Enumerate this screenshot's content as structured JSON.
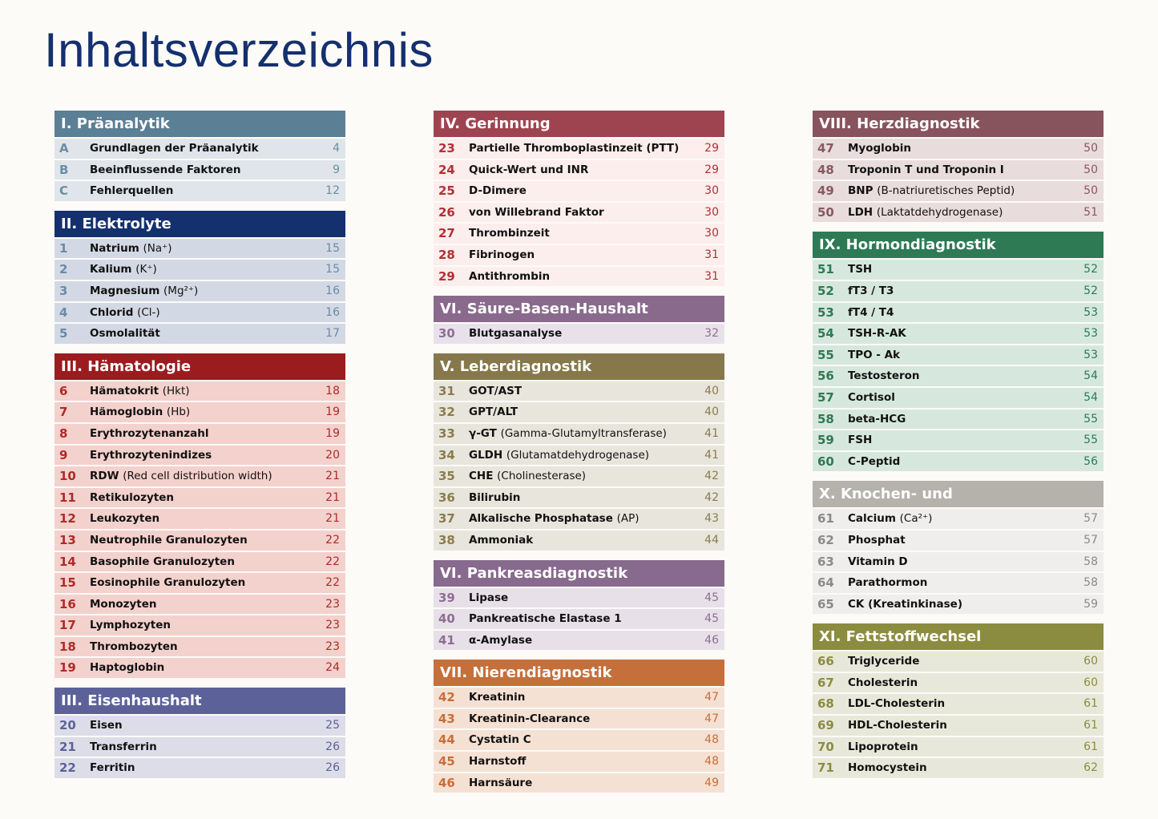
{
  "title": "Inhaltsverzeichnis",
  "columns": [
    {
      "sections": [
        {
          "title": "I. Präanalytik",
          "color": "#5b7f95",
          "row_color": "#dfe5ea",
          "accent": "#6b8fa5",
          "entries": [
            {
              "number": "A",
              "name": "Grundlagen der Präanalytik",
              "page": 4
            },
            {
              "number": "B",
              "name": "Beeinflussende Faktoren",
              "page": 9
            },
            {
              "number": "C",
              "name": "Fehlerquellen",
              "page": 12
            }
          ]
        },
        {
          "title": "II. Elektrolyte",
          "color": "#14306e",
          "row_color": "#d3d9e4",
          "accent": "#6a8aa8",
          "entries": [
            {
              "number": 1,
              "name": "Natrium",
              "detail": "(Na⁺)",
              "page": 15
            },
            {
              "number": 2,
              "name": "Kalium",
              "detail": "(K⁺)",
              "page": 15
            },
            {
              "number": 3,
              "name": "Magnesium",
              "detail": "(Mg²⁺)",
              "page": 16
            },
            {
              "number": 4,
              "name": "Chlorid",
              "detail": "(Cl-)",
              "page": 16
            },
            {
              "number": 5,
              "name": "Osmolalität",
              "page": 17
            }
          ]
        },
        {
          "title": "III. Hämatologie",
          "color": "#9b1c1f",
          "row_color": "#f3d1cc",
          "accent": "#b02a2a",
          "entries": [
            {
              "number": 6,
              "name": "Hämatokrit",
              "detail": "(Hkt)",
              "page": 18
            },
            {
              "number": 7,
              "name": "Hämoglobin",
              "detail": "(Hb)",
              "page": 19
            },
            {
              "number": 8,
              "name": "Erythrozytenanzahl",
              "page": 19
            },
            {
              "number": 9,
              "name": "Erythrozytenindizes",
              "page": 20
            },
            {
              "number": 10,
              "name": "RDW",
              "detail": "(Red cell distribution width)",
              "page": 21
            },
            {
              "number": 11,
              "name": "Retikulozyten",
              "page": 21
            },
            {
              "number": 12,
              "name": "Leukozyten",
              "page": 21
            },
            {
              "number": 13,
              "name": "Neutrophile Granulozyten",
              "page": 22
            },
            {
              "number": 14,
              "name": "Basophile Granulozyten",
              "page": 22
            },
            {
              "number": 15,
              "name": "Eosinophile Granulozyten",
              "page": 22
            },
            {
              "number": 16,
              "name": "Monozyten",
              "page": 23
            },
            {
              "number": 17,
              "name": "Lymphozyten",
              "page": 23
            },
            {
              "number": 18,
              "name": "Thrombozyten",
              "page": 23
            },
            {
              "number": 19,
              "name": "Haptoglobin",
              "page": 24
            }
          ]
        },
        {
          "title": "III. Eisenhaushalt",
          "color": "#5c6299",
          "row_color": "#dcdde8",
          "accent": "#5c6299",
          "entries": [
            {
              "number": 20,
              "name": "Eisen",
              "page": 25
            },
            {
              "number": 21,
              "name": "Transferrin",
              "page": 26
            },
            {
              "number": 22,
              "name": "Ferritin",
              "page": 26
            }
          ]
        }
      ]
    },
    {
      "sections": [
        {
          "title": "IV. Gerinnung",
          "color": "#9e4450",
          "row_color": "#fbeeec",
          "accent": "#b0303a",
          "entries": [
            {
              "number": 23,
              "name": "Partielle Thromboplastinzeit (PTT)",
              "page": 29
            },
            {
              "number": 24,
              "name": "Quick-Wert und INR",
              "page": 29
            },
            {
              "number": 25,
              "name": "D-Dimere",
              "page": 30
            },
            {
              "number": 26,
              "name": "von Willebrand Faktor",
              "page": 30
            },
            {
              "number": 27,
              "name": "Thrombinzeit",
              "page": 30
            },
            {
              "number": 28,
              "name": "Fibrinogen",
              "page": 31
            },
            {
              "number": 29,
              "name": "Antithrombin",
              "page": 31
            }
          ]
        },
        {
          "title": "VI. Säure-Basen-Haushalt",
          "color": "#896a8d",
          "row_color": "#e9e1ea",
          "accent": "#8d6f92",
          "entries": [
            {
              "number": 30,
              "name": "Blutgasanalyse",
              "page": 32
            }
          ]
        },
        {
          "title": "V. Leberdiagnostik",
          "color": "#86784a",
          "row_color": "#e8e5dc",
          "accent": "#8a7c4f",
          "entries": [
            {
              "number": 31,
              "name": "GOT/AST",
              "page": 40
            },
            {
              "number": 32,
              "name": "GPT/ALT",
              "page": 40
            },
            {
              "number": 33,
              "name": "γ-GT",
              "detail": "(Gamma-Glutamyltransferase)",
              "page": 41
            },
            {
              "number": 34,
              "name": "GLDH",
              "detail": "(Glutamatdehydrogenase)",
              "page": 41
            },
            {
              "number": 35,
              "name": "CHE",
              "detail": "(Cholinesterase)",
              "page": 42
            },
            {
              "number": 36,
              "name": "Bilirubin",
              "page": 42
            },
            {
              "number": 37,
              "name": "Alkalische Phosphatase",
              "detail": "(AP)",
              "page": 43
            },
            {
              "number": 38,
              "name": "Ammoniak",
              "page": 44
            }
          ]
        },
        {
          "title": "VI. Pankreasdiagnostik",
          "color": "#876a8d",
          "row_color": "#e7e0e8",
          "accent": "#8d6f92",
          "entries": [
            {
              "number": 39,
              "name": "Lipase",
              "page": 45
            },
            {
              "number": 40,
              "name": "Pankreatische Elastase 1",
              "page": 45
            },
            {
              "number": 41,
              "name": "α-Amylase",
              "page": 46
            }
          ]
        },
        {
          "title": "VII. Nierendiagnostik",
          "color": "#c56f3b",
          "row_color": "#f5e1d3",
          "accent": "#c56f3b",
          "entries": [
            {
              "number": 42,
              "name": "Kreatinin",
              "page": 47
            },
            {
              "number": 43,
              "name": "Kreatinin-Clearance",
              "page": 47
            },
            {
              "number": 44,
              "name": "Cystatin C",
              "page": 48
            },
            {
              "number": 45,
              "name": "Harnstoff",
              "page": 48
            },
            {
              "number": 46,
              "name": "Harnsäure",
              "page": 49
            }
          ]
        }
      ]
    },
    {
      "sections": [
        {
          "title": "VIII. Herzdiagnostik",
          "color": "#87545e",
          "row_color": "#e8dcdc",
          "accent": "#8a5862",
          "entries": [
            {
              "number": 47,
              "name": "Myoglobin",
              "page": 50
            },
            {
              "number": 48,
              "name": "Troponin T und Troponin I",
              "page": 50
            },
            {
              "number": 49,
              "name": "BNP",
              "detail": "(B-natriuretisches Peptid)",
              "page": 50
            },
            {
              "number": 50,
              "name": "LDH",
              "detail": "(Laktatdehydrogenase)",
              "page": 51
            }
          ]
        },
        {
          "title": "IX. Hormondiagnostik",
          "color": "#2d7a55",
          "row_color": "#d6e8de",
          "accent": "#2d7a55",
          "entries": [
            {
              "number": 51,
              "name": "TSH",
              "page": 52
            },
            {
              "number": 52,
              "name": "fT3 / T3",
              "page": 52
            },
            {
              "number": 53,
              "name": "fT4 / T4",
              "page": 53
            },
            {
              "number": 54,
              "name": "TSH-R-AK",
              "page": 53
            },
            {
              "number": 55,
              "name": "TPO - Ak",
              "page": 53
            },
            {
              "number": 56,
              "name": "Testosteron",
              "page": 54
            },
            {
              "number": 57,
              "name": "Cortisol",
              "page": 54
            },
            {
              "number": 58,
              "name": "beta-HCG",
              "page": 55
            },
            {
              "number": 59,
              "name": "FSH",
              "page": 55
            },
            {
              "number": 60,
              "name": "C-Peptid",
              "page": 56
            }
          ]
        },
        {
          "title": "X. Knochen- und Muskelstoffwechsel",
          "color": "#b5b2ac",
          "row_color": "#efeeec",
          "accent": "#8a8a8a",
          "entries": [
            {
              "number": 61,
              "name": "Calcium",
              "detail": "(Ca²⁺)",
              "page": 57
            },
            {
              "number": 62,
              "name": "Phosphat",
              "page": 57
            },
            {
              "number": 63,
              "name": "Vitamin D",
              "page": 58
            },
            {
              "number": 64,
              "name": "Parathormon",
              "page": 58
            },
            {
              "number": 65,
              "name": "CK (Kreatinkinase)",
              "page": 59
            }
          ]
        },
        {
          "title": "XI. Fettstoffwechsel",
          "color": "#8b8c3f",
          "row_color": "#e8e8da",
          "accent": "#8b8c3f",
          "entries": [
            {
              "number": 66,
              "name": "Triglyceride",
              "page": 60
            },
            {
              "number": 67,
              "name": "Cholesterin",
              "page": 60
            },
            {
              "number": 68,
              "name": "LDL-Cholesterin",
              "page": 61
            },
            {
              "number": 69,
              "name": "HDL-Cholesterin",
              "page": 61
            },
            {
              "number": 70,
              "name": "Lipoprotein",
              "page": 61
            },
            {
              "number": 71,
              "name": "Homocystein",
              "page": 62
            }
          ]
        }
      ]
    }
  ]
}
